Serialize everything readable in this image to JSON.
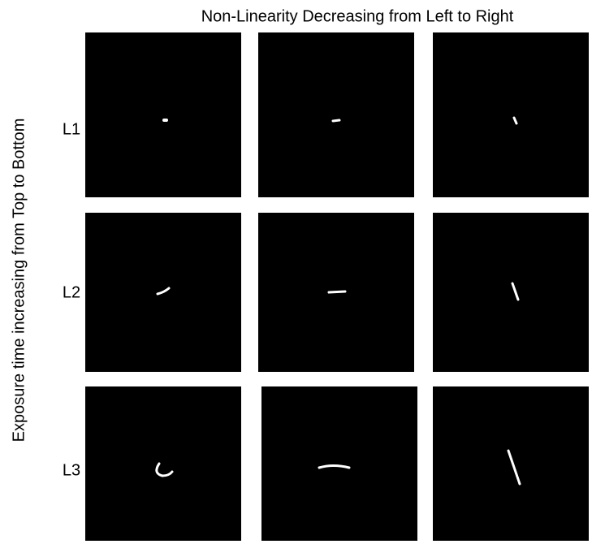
{
  "title": "Non-Linearity Decreasing from Left to Right",
  "y_label": "Exposure time increasing from Top to Bottom",
  "rows": [
    {
      "label": "L1"
    },
    {
      "label": "L2"
    },
    {
      "label": "L3"
    }
  ]
}
